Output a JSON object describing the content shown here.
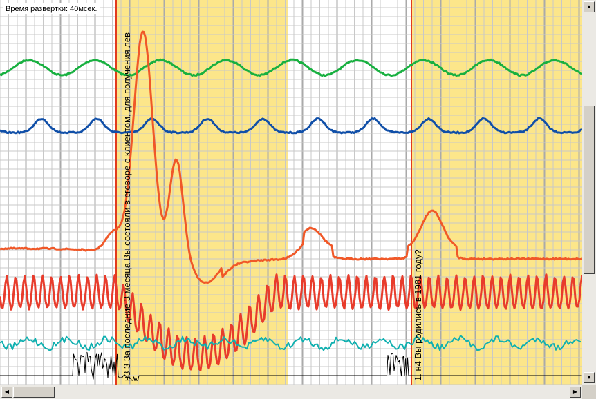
{
  "window": {
    "sweep_label": "Время развертки: 40мсек."
  },
  "questions": [
    {
      "text": "н3 3 За последние 3 месяца Вы состояли в сговоре с клиентом, для получения лев"
    },
    {
      "text": "1. н4 Вы родились в 1981 году?"
    }
  ],
  "colors": {
    "grid_minor": "#c8c8c8",
    "grid_major": "#aaaaaa",
    "highlight": "#fce68a",
    "marker": "#e23b1c",
    "channel_green": "#18b040",
    "channel_blue": "#104fa8",
    "channel_orange": "#f05828",
    "channel_red": "#e83c2c",
    "channel_cyan": "#10b0b0",
    "channel_black": "#000000"
  },
  "channels": [
    {
      "name": "green-channel"
    },
    {
      "name": "blue-channel"
    },
    {
      "name": "orange-channel"
    },
    {
      "name": "red-channel"
    },
    {
      "name": "cyan-channel"
    },
    {
      "name": "black-channel"
    }
  ],
  "scrollbars": {
    "vertical_position": 0.65,
    "horizontal_position": 0.0
  }
}
